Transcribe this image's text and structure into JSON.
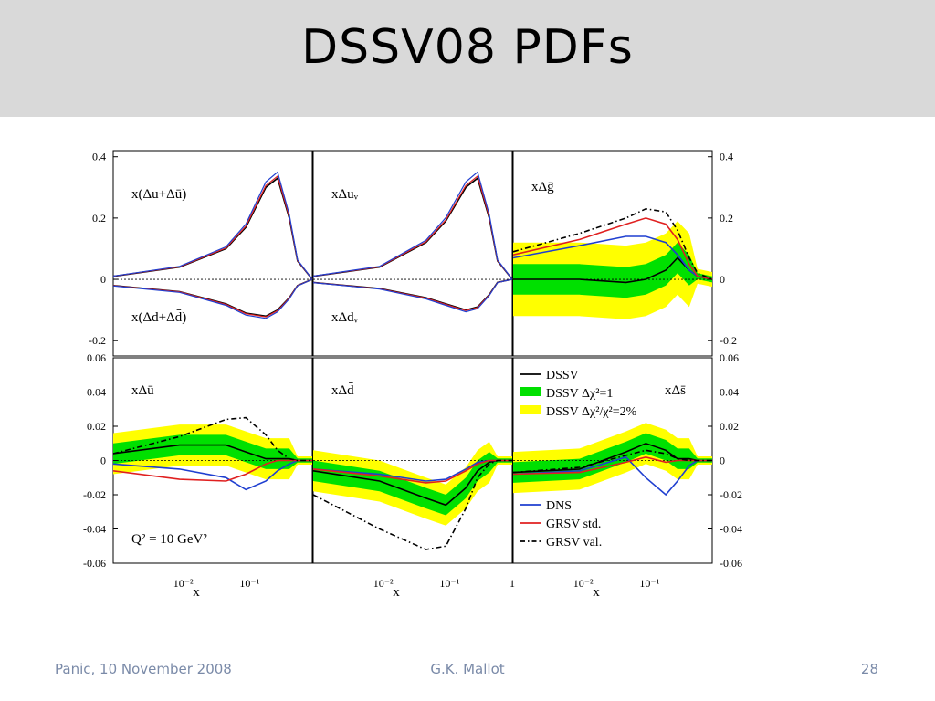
{
  "slide": {
    "title": "DSSV08 PDFs",
    "footer_left": "Panic, 10 November 2008",
    "footer_center": "G.K. Mallot",
    "footer_right": "28"
  },
  "colors": {
    "dssv": "#000000",
    "band1": "#00e000",
    "band2": "#ffff00",
    "dns": "#1f3fd0",
    "grsv_std": "#e02020",
    "grsv_val": "#000000"
  },
  "chart_data": [
    {
      "type": "line",
      "panel": "top-left",
      "labels": [
        "x(Δu+Δū)",
        "x(Δd+Δd̄)"
      ],
      "ylim": [
        -0.25,
        0.42
      ],
      "yticks": [
        "0.4",
        "0.2",
        "0",
        "-0.2"
      ],
      "ytick_side": "left",
      "xscale": "log",
      "xlim": [
        0.001,
        1
      ],
      "x": [
        0.001,
        0.01,
        0.05,
        0.1,
        0.2,
        0.3,
        0.45,
        0.6,
        1
      ],
      "series": [
        {
          "values": [
            0.01,
            0.04,
            0.1,
            0.17,
            0.3,
            0.33,
            0.2,
            0.06,
            0
          ]
        },
        {
          "values": [
            -0.02,
            -0.04,
            -0.08,
            -0.11,
            -0.12,
            -0.1,
            -0.06,
            -0.02,
            0
          ]
        }
      ]
    },
    {
      "type": "line",
      "panel": "top-middle",
      "labels": [
        "xΔuᵥ",
        "xΔdᵥ"
      ],
      "ylim": [
        -0.25,
        0.42
      ],
      "yticks": [],
      "xscale": "log",
      "xlim": [
        0.001,
        1
      ],
      "x": [
        0.001,
        0.01,
        0.05,
        0.1,
        0.2,
        0.3,
        0.45,
        0.6,
        1
      ],
      "series": [
        {
          "values": [
            0.01,
            0.04,
            0.12,
            0.19,
            0.3,
            0.33,
            0.2,
            0.06,
            0
          ]
        },
        {
          "values": [
            -0.01,
            -0.03,
            -0.06,
            -0.08,
            -0.1,
            -0.09,
            -0.05,
            -0.01,
            0
          ]
        }
      ]
    },
    {
      "type": "line",
      "panel": "top-right",
      "labels": [
        "xΔḡ"
      ],
      "ylim": [
        -0.25,
        0.42
      ],
      "yticks": [
        "0.4",
        "0.2",
        "0",
        "-0.2"
      ],
      "ytick_side": "right",
      "xscale": "log",
      "xlim": [
        0.001,
        1
      ],
      "x": [
        0.001,
        0.01,
        0.05,
        0.1,
        0.2,
        0.3,
        0.45,
        0.6,
        1
      ],
      "series": [
        {
          "name": "DSSV",
          "values": [
            0,
            0,
            -0.01,
            0,
            0.03,
            0.07,
            0.03,
            0.01,
            0
          ]
        },
        {
          "name": "DNS",
          "values": [
            0.07,
            0.11,
            0.14,
            0.14,
            0.12,
            0.08,
            0.03,
            0.01,
            0
          ]
        },
        {
          "name": "GRSV std.",
          "values": [
            0.08,
            0.13,
            0.18,
            0.2,
            0.18,
            0.13,
            0.05,
            0.01,
            0
          ]
        },
        {
          "name": "GRSV val.",
          "values": [
            0.09,
            0.15,
            0.2,
            0.23,
            0.22,
            0.16,
            0.07,
            0.02,
            0
          ]
        }
      ]
    },
    {
      "type": "line",
      "panel": "bottom-left",
      "labels": [
        "xΔū",
        "Q² = 10 GeV²"
      ],
      "ylim": [
        -0.06,
        0.06
      ],
      "yticks": [
        "0.06",
        "0.04",
        "0.02",
        "0",
        "-0.02",
        "-0.04",
        "-0.06"
      ],
      "ytick_side": "left",
      "xscale": "log",
      "xlim": [
        0.001,
        1
      ],
      "x": [
        0.001,
        0.01,
        0.05,
        0.1,
        0.2,
        0.3,
        0.45,
        0.6,
        1
      ],
      "series": [
        {
          "name": "DSSV",
          "values": [
            0.004,
            0.009,
            0.009,
            0.005,
            0.001,
            0.001,
            0.001,
            0,
            0
          ]
        },
        {
          "name": "DNS",
          "values": [
            -0.002,
            -0.005,
            -0.01,
            -0.017,
            -0.012,
            -0.006,
            -0.002,
            0,
            0
          ]
        },
        {
          "name": "GRSV std.",
          "values": [
            -0.006,
            -0.011,
            -0.012,
            -0.008,
            -0.002,
            0,
            0,
            0,
            0
          ]
        },
        {
          "name": "GRSV val.",
          "values": [
            0.004,
            0.014,
            0.024,
            0.025,
            0.015,
            0.006,
            0.001,
            0,
            0
          ]
        }
      ],
      "xticks": [
        "10⁻²",
        "10⁻¹"
      ],
      "xlabel": "x"
    },
    {
      "type": "line",
      "panel": "bottom-middle",
      "labels": [
        "xΔd̄"
      ],
      "ylim": [
        -0.06,
        0.06
      ],
      "yticks": [],
      "xscale": "log",
      "xlim": [
        0.001,
        1
      ],
      "x": [
        0.001,
        0.01,
        0.05,
        0.1,
        0.2,
        0.3,
        0.45,
        0.6,
        1
      ],
      "series": [
        {
          "name": "DSSV",
          "values": [
            -0.006,
            -0.012,
            -0.022,
            -0.026,
            -0.016,
            -0.006,
            -0.001,
            0,
            0
          ]
        },
        {
          "name": "DNS",
          "values": [
            -0.005,
            -0.008,
            -0.012,
            -0.011,
            -0.005,
            -0.001,
            0,
            0,
            0
          ]
        },
        {
          "name": "GRSV std.",
          "values": [
            -0.005,
            -0.009,
            -0.013,
            -0.012,
            -0.006,
            -0.002,
            0,
            0,
            0
          ]
        },
        {
          "name": "GRSV val.",
          "values": [
            -0.02,
            -0.04,
            -0.052,
            -0.05,
            -0.028,
            -0.01,
            -0.002,
            0,
            0
          ]
        }
      ],
      "xticks": [
        "10⁻²",
        "10⁻¹",
        "1"
      ],
      "xlabel": "x"
    },
    {
      "type": "line",
      "panel": "bottom-right",
      "labels": [
        "xΔs̄"
      ],
      "ylim": [
        -0.06,
        0.06
      ],
      "yticks": [
        "0.06",
        "0.04",
        "0.02",
        "0",
        "-0.02",
        "-0.04",
        "-0.06"
      ],
      "ytick_side": "right",
      "xscale": "log",
      "xlim": [
        0.001,
        1
      ],
      "x": [
        0.001,
        0.01,
        0.05,
        0.1,
        0.2,
        0.3,
        0.45,
        0.6,
        1
      ],
      "series": [
        {
          "name": "DSSV",
          "values": [
            -0.007,
            -0.005,
            0.005,
            0.01,
            0.006,
            0.001,
            0.001,
            0,
            0
          ]
        },
        {
          "name": "DNS",
          "values": [
            -0.008,
            -0.006,
            0.002,
            -0.01,
            -0.02,
            -0.012,
            -0.003,
            0,
            0
          ]
        },
        {
          "name": "GRSV std.",
          "values": [
            -0.008,
            -0.007,
            -0.001,
            0.002,
            -0.001,
            0,
            0,
            0,
            0
          ]
        },
        {
          "name": "GRSV val.",
          "values": [
            -0.007,
            -0.004,
            0.003,
            0.006,
            0.004,
            0.001,
            0,
            0,
            0
          ]
        }
      ],
      "xticks": [
        "10⁻²",
        "10⁻¹"
      ],
      "xlabel": "x"
    }
  ],
  "legend": {
    "items": [
      {
        "label": "DSSV",
        "style": "solid",
        "color": "#000000"
      },
      {
        "label": "DSSV Δχ²=1",
        "style": "band",
        "color": "#00e000"
      },
      {
        "label": "DSSV Δχ²/χ²=2%",
        "style": "band",
        "color": "#ffff00"
      },
      {
        "label": "DNS",
        "style": "solid",
        "color": "#1f3fd0"
      },
      {
        "label": "GRSV std.",
        "style": "solid",
        "color": "#e02020"
      },
      {
        "label": "GRSV val.",
        "style": "dashdot",
        "color": "#000000"
      }
    ]
  }
}
